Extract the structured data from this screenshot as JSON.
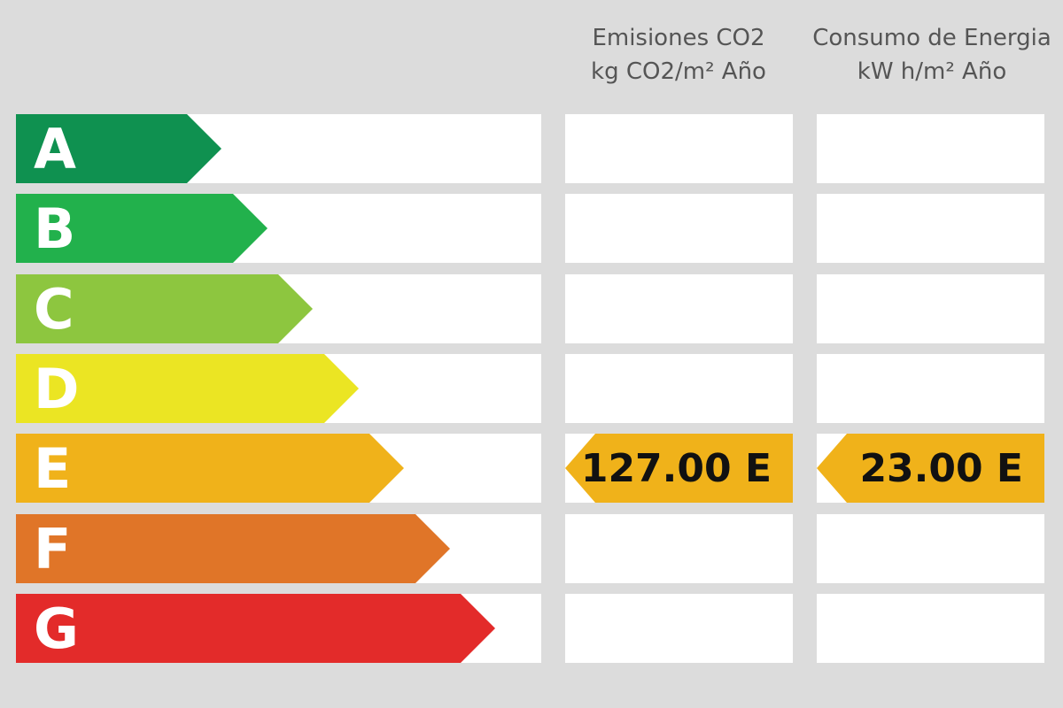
{
  "columns": {
    "co2": {
      "title": "Emisiones CO2",
      "unit": "kg CO2/m² Año"
    },
    "energy": {
      "title": "Consumo de Energia",
      "unit": "kW h/m² Año"
    }
  },
  "chart_data": {
    "type": "table",
    "grades": [
      {
        "letter": "A",
        "color": "#0f9150",
        "level": 1
      },
      {
        "letter": "B",
        "color": "#22b14c",
        "level": 2
      },
      {
        "letter": "C",
        "color": "#8dc63f",
        "level": 3
      },
      {
        "letter": "D",
        "color": "#ebe523",
        "level": 4
      },
      {
        "letter": "E",
        "color": "#f0b21a",
        "level": 5
      },
      {
        "letter": "F",
        "color": "#e07528",
        "level": 6
      },
      {
        "letter": "G",
        "color": "#e32b2a",
        "level": 7
      }
    ],
    "ratings": {
      "co2": {
        "value": 127.0,
        "grade": "E",
        "label": "127.00 E"
      },
      "energy": {
        "value": 23.0,
        "grade": "E",
        "label": "23.00 E"
      }
    }
  }
}
